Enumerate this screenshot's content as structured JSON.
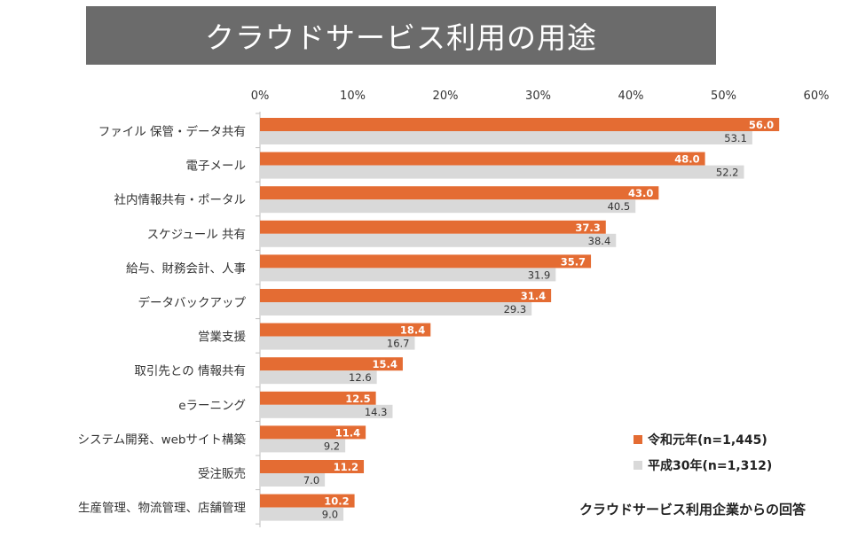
{
  "title": "クラウドサービス利用の用途",
  "colors": {
    "current": "#e46c33",
    "previous": "#d9d9d9",
    "title_bg": "#6b6b6b"
  },
  "legend": {
    "current": "令和元年(n=1,445)",
    "previous": "平成30年(n=1,312)"
  },
  "note": "クラウドサービス利用企業からの回答",
  "chart_data": {
    "type": "bar",
    "orientation": "horizontal",
    "x_ticks": [
      "0%",
      "10%",
      "20%",
      "30%",
      "40%",
      "50%",
      "60%"
    ],
    "xlim": [
      0,
      60
    ],
    "legend_position": "bottom-right",
    "categories": [
      "ファイル 保管・データ共有",
      "電子メール",
      "社内情報共有・ポータル",
      "スケジュール 共有",
      "給与、財務会計、人事",
      "データバックアップ",
      "営業支援",
      "取引先との 情報共有",
      "eラーニング",
      "システム開発、webサイト構築",
      "受注販売",
      "生産管理、物流管理、店舗管理"
    ],
    "series": [
      {
        "name": "令和元年(n=1,445)",
        "values": [
          56.0,
          48.0,
          43.0,
          37.3,
          35.7,
          31.4,
          18.4,
          15.4,
          12.5,
          11.4,
          11.2,
          10.2
        ]
      },
      {
        "name": "平成30年(n=1,312)",
        "values": [
          53.1,
          52.2,
          40.5,
          38.4,
          31.9,
          29.3,
          16.7,
          12.6,
          14.3,
          9.2,
          7.0,
          9.0
        ]
      }
    ]
  }
}
